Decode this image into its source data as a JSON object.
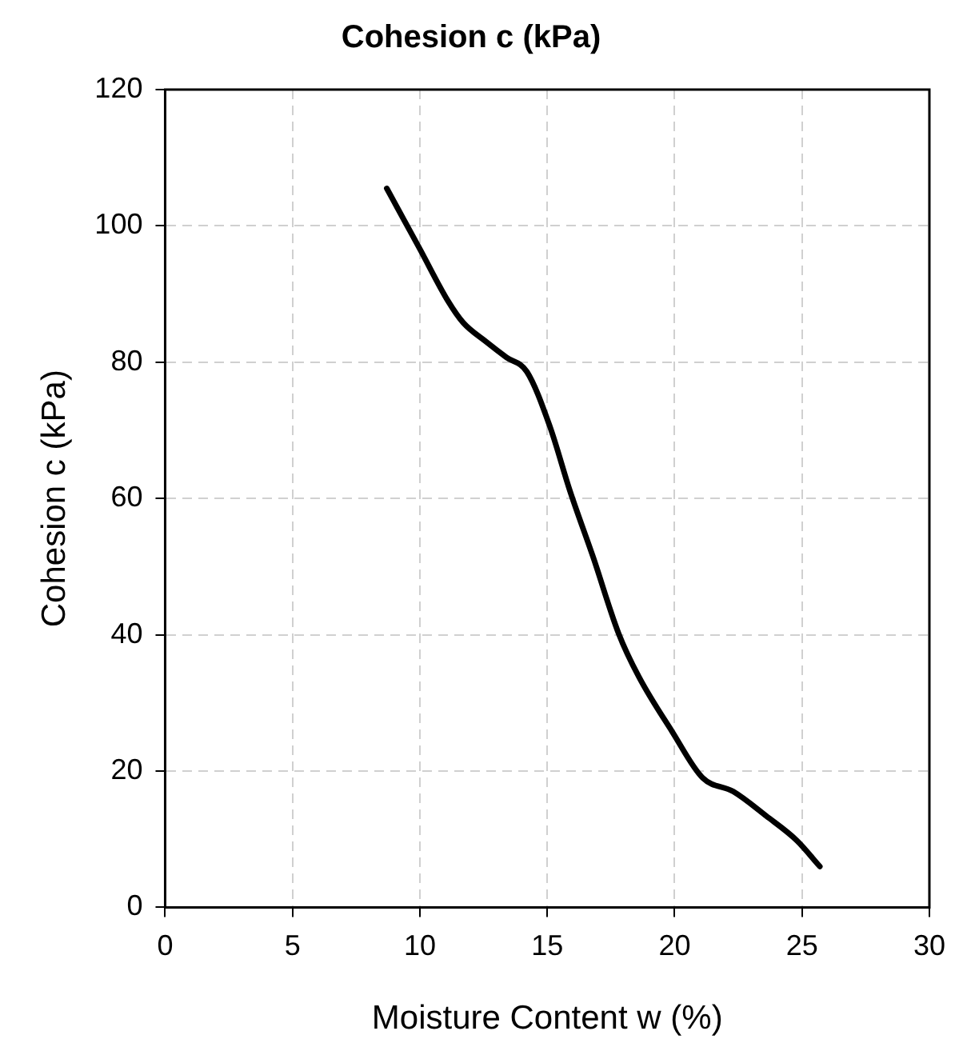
{
  "chart_data": {
    "type": "line",
    "title": "Cohesion c (kPa)",
    "xlabel": "Moisture Content w (%)",
    "ylabel": "Cohesion c (kPa)",
    "x": [
      8.7,
      10.0,
      11.1,
      11.7,
      12.6,
      13.4,
      14.2,
      15.1,
      15.9,
      16.8,
      17.8,
      18.6,
      19.9,
      21.1,
      22.3,
      23.6,
      24.8,
      25.7
    ],
    "series": [
      {
        "color": "#000000",
        "values": [
          105.5,
          96.6,
          89,
          85.8,
          83,
          80.7,
          78.6,
          70.6,
          61,
          51.4,
          40.2,
          33.8,
          25.8,
          19,
          17,
          13.4,
          9.8,
          6
        ]
      }
    ],
    "xlim": [
      0,
      30
    ],
    "xticks": [
      0,
      5,
      10,
      15,
      20,
      25,
      30
    ],
    "ylim": [
      0,
      120
    ],
    "yticks": [
      0,
      20,
      40,
      60,
      80,
      100,
      120
    ],
    "grid": true,
    "legend": false,
    "marker": "none",
    "line_style": "solid"
  }
}
